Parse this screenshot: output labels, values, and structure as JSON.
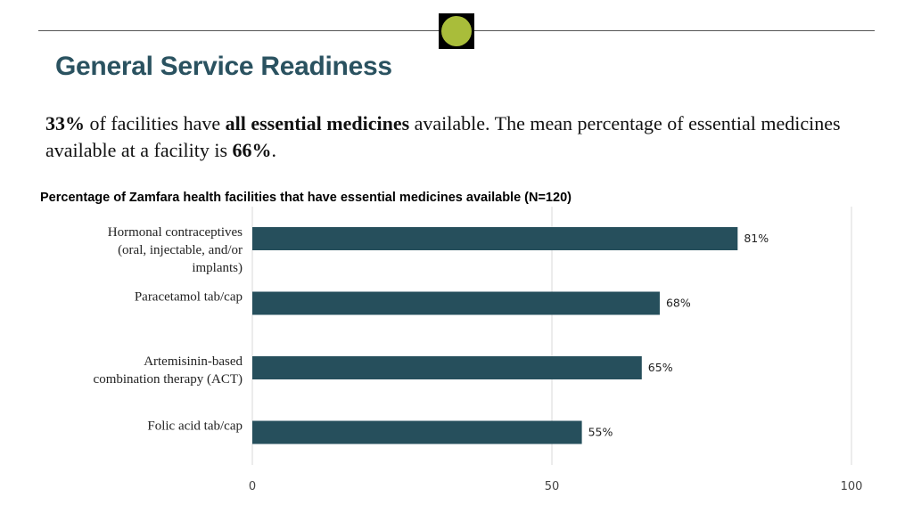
{
  "page": {
    "title": "General Service Readiness",
    "accent_color": "#2a5260",
    "badge_color": "#a9bd3a"
  },
  "summary": {
    "stat1": "33%",
    "text1": " of facilities have ",
    "emph": "all essential medicines",
    "text2": " available. The mean percentage of essential medicines available at a facility is ",
    "stat2": "66%",
    "text3": "."
  },
  "chart_data": {
    "type": "bar",
    "orientation": "horizontal",
    "title": "Percentage of Zamfara health facilities that have essential medicines available  (N=120)",
    "categories": [
      [
        "Hormonal contraceptives",
        "(oral, injectable, and/or",
        "implants)"
      ],
      [
        "Paracetamol tab/cap"
      ],
      [
        "Artemisinin-based",
        "combination therapy (ACT)"
      ],
      [
        "Folic acid tab/cap"
      ]
    ],
    "values": [
      81,
      68,
      65,
      55
    ],
    "value_labels": [
      "81%",
      "68%",
      "65%",
      "55%"
    ],
    "xlim": [
      0,
      100
    ],
    "xticks": [
      0,
      50,
      100
    ],
    "grid": true,
    "bar_color": "#264f5c"
  }
}
